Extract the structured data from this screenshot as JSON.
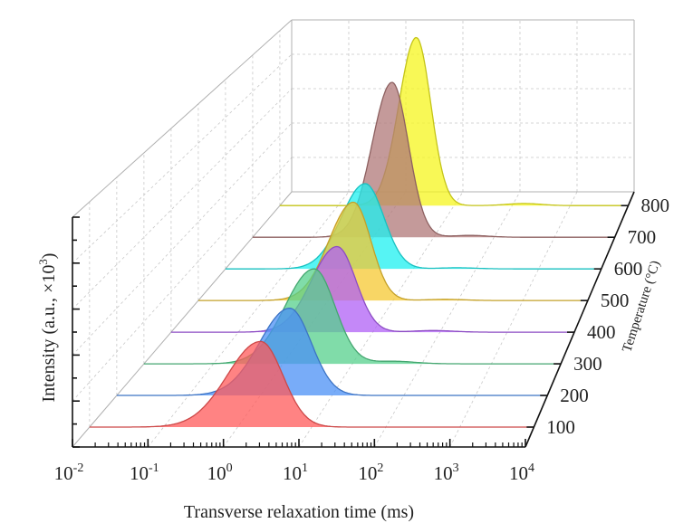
{
  "chart_data": {
    "type": "area",
    "subtype": "3d-waterfall",
    "title": "",
    "xlabel": "Transverse relaxation time (ms)",
    "ylabel": "Intensity (a.u., ×10³)",
    "ylabel_parts": {
      "main": "Intensity (a.u., ×10",
      "sup": "3",
      "end": ")"
    },
    "zlabel": "Temperature (°C)",
    "x_scale": "log10",
    "xlim_log": [
      -2,
      4
    ],
    "x_ticks": [
      {
        "base": "10",
        "exp": "-2"
      },
      {
        "base": "10",
        "exp": "-1"
      },
      {
        "base": "10",
        "exp": "0"
      },
      {
        "base": "10",
        "exp": "1"
      },
      {
        "base": "10",
        "exp": "2"
      },
      {
        "base": "10",
        "exp": "3"
      },
      {
        "base": "10",
        "exp": "4"
      }
    ],
    "grid": true,
    "intensity_note": "amplitudes relative to full axis height (no tick labels shown)",
    "series": [
      {
        "name": "100",
        "color": "#ff5a5a",
        "peak_log": 0.31,
        "amplitude": 0.38,
        "left_width": 0.45,
        "right_width": 0.3,
        "bump_log": 2.5,
        "bump_amp": 0.0
      },
      {
        "name": "200",
        "color": "#4b90f5",
        "peak_log": 0.41,
        "amplitude": 0.4,
        "left_width": 0.42,
        "right_width": 0.3,
        "bump_log": 2.5,
        "bump_amp": 0.0
      },
      {
        "name": "300",
        "color": "#55d08c",
        "peak_log": 0.45,
        "amplitude": 0.45,
        "left_width": 0.42,
        "right_width": 0.3,
        "bump_log": 1.6,
        "bump_amp": 0.012
      },
      {
        "name": "400",
        "color": "#b060f5",
        "peak_log": 0.47,
        "amplitude": 0.42,
        "left_width": 0.38,
        "right_width": 0.28,
        "bump_log": 1.9,
        "bump_amp": 0.008
      },
      {
        "name": "500",
        "color": "#f5c832",
        "peak_log": 0.39,
        "amplitude": 0.5,
        "left_width": 0.38,
        "right_width": 0.27,
        "bump_log": 1.8,
        "bump_amp": 0.006
      },
      {
        "name": "600",
        "color": "#1ef0f0",
        "peak_log": 0.23,
        "amplitude": 0.45,
        "left_width": 0.38,
        "right_width": 0.3,
        "bump_log": 1.7,
        "bump_amp": 0.006
      },
      {
        "name": "700",
        "color": "#b07878",
        "peak_log": 0.31,
        "amplitude": 0.85,
        "left_width": 0.33,
        "right_width": 0.27,
        "bump_log": 1.6,
        "bump_amp": 0.01
      },
      {
        "name": "800",
        "color": "#f5f51e",
        "peak_log": 0.35,
        "amplitude": 0.96,
        "left_width": 0.3,
        "right_width": 0.25,
        "bump_log": 2.2,
        "bump_amp": 0.012
      }
    ]
  }
}
